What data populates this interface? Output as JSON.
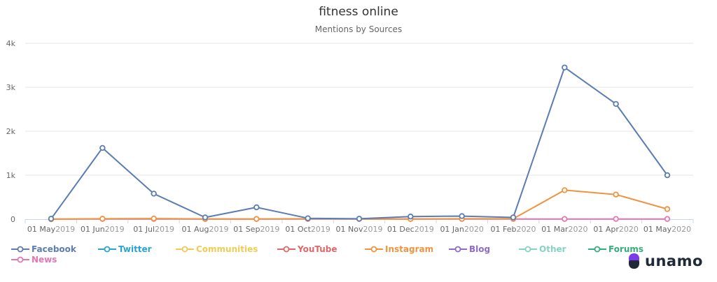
{
  "chart_data": {
    "type": "line",
    "title": "fitness online",
    "subtitle": "Mentions by Sources",
    "categories": [
      {
        "day": "01 May",
        "year": "2019"
      },
      {
        "day": "01 Jun",
        "year": "2019"
      },
      {
        "day": "01 Jul",
        "year": "2019"
      },
      {
        "day": "01 Aug",
        "year": "2019"
      },
      {
        "day": "01 Sep",
        "year": "2019"
      },
      {
        "day": "01 Oct",
        "year": "2019"
      },
      {
        "day": "01 Nov",
        "year": "2019"
      },
      {
        "day": "01 Dec",
        "year": "2019"
      },
      {
        "day": "01 Jan",
        "year": "2020"
      },
      {
        "day": "01 Feb",
        "year": "2020"
      },
      {
        "day": "01 Mar",
        "year": "2020"
      },
      {
        "day": "01 Apr",
        "year": "2020"
      },
      {
        "day": "01 May",
        "year": "2020"
      }
    ],
    "ylim": [
      0,
      4000
    ],
    "yticks": [
      {
        "value": 0,
        "label": "0"
      },
      {
        "value": 1000,
        "label": "1k"
      },
      {
        "value": 2000,
        "label": "2k"
      },
      {
        "value": 3000,
        "label": "3k"
      },
      {
        "value": 4000,
        "label": "4k"
      }
    ],
    "grid": true,
    "legend_position": "bottom",
    "series": [
      {
        "name": "Facebook",
        "color": "#5b7db1",
        "values": [
          10,
          1620,
          580,
          40,
          270,
          20,
          10,
          60,
          70,
          40,
          3450,
          2620,
          1000
        ]
      },
      {
        "name": "Twitter",
        "color": "#2aa4d5",
        "values": null
      },
      {
        "name": "Communities",
        "color": "#f0cc55",
        "values": null
      },
      {
        "name": "YouTube",
        "color": "#e06767",
        "values": null
      },
      {
        "name": "Instagram",
        "color": "#ee9441",
        "values": [
          0,
          10,
          15,
          5,
          5,
          10,
          5,
          5,
          10,
          10,
          660,
          560,
          230
        ]
      },
      {
        "name": "Blog",
        "color": "#8e6bc4",
        "values": null
      },
      {
        "name": "Other",
        "color": "#86d3c4",
        "values": null
      },
      {
        "name": "Forums",
        "color": "#35ad7f",
        "values": null
      },
      {
        "name": "News",
        "color": "#e377b1",
        "values": [
          5,
          5,
          5,
          5,
          5,
          5,
          5,
          5,
          5,
          5,
          5,
          5,
          5
        ]
      }
    ]
  },
  "brand": {
    "logo_text": "unamo",
    "mark_top_color": "#7c3aed",
    "mark_bottom_color": "#1f2937"
  }
}
